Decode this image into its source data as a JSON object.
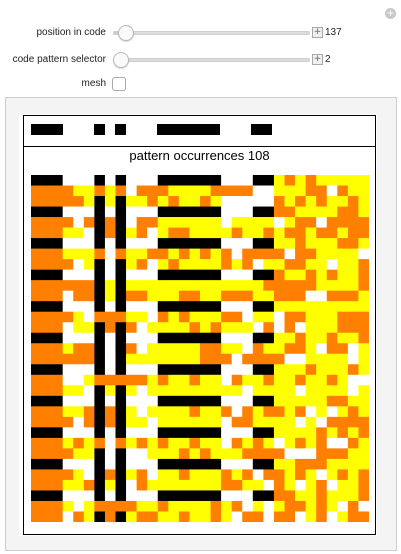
{
  "controls": {
    "position_label": "position in code",
    "position_value": "137",
    "position_fraction": 0.03,
    "selector_label": "code pattern selector",
    "selector_value": "2",
    "selector_fraction": 0.0,
    "mesh_label": "mesh",
    "mesh_checked": false
  },
  "output": {
    "caption": "pattern occurrences 108"
  },
  "colors": {
    "black": "#000000",
    "orange": "#ff8000",
    "yellow": "#ffff00",
    "white": "#ffffff"
  }
}
